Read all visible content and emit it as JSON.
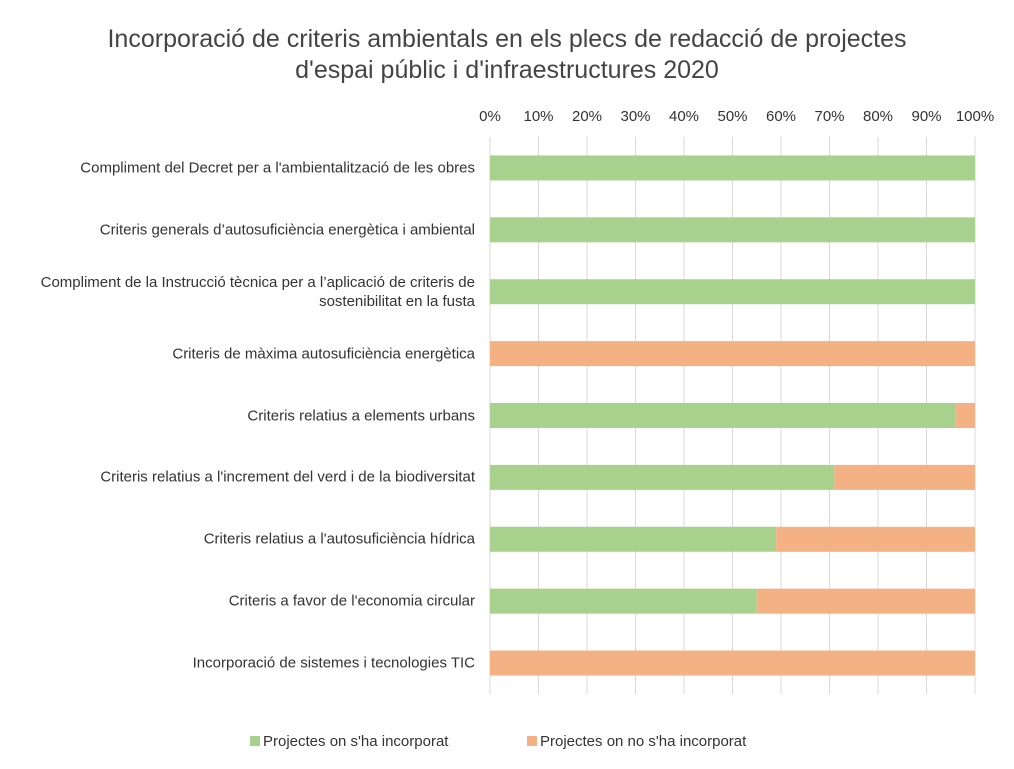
{
  "chart_data": {
    "type": "stacked-barh",
    "title": "Incorporació de criteris ambientals en els plecs de redacció de projectes d'espai públic i d'infraestructures 2020",
    "categories": [
      "Compliment del Decret per a l'ambientalització de les obres",
      "Criteris generals d’autosuficiència energètica i ambiental",
      "Compliment de la Instrucció tècnica per a l’aplicació de criteris de sostenibilitat en la fusta",
      "Criteris de màxima autosuficiència energètica",
      "Criteris relatius a elements urbans",
      "Criteris relatius a l'increment del verd i de la biodiversitat",
      "Criteris relatius a l'autosuficiència hídrica",
      "Criteris a favor de l'economia circular",
      "Incorporació de sistemes i tecnologies TIC"
    ],
    "series": [
      {
        "name": "Projectes on s'ha incorporat",
        "color": "#a9d18e",
        "values": [
          100,
          100,
          100,
          0,
          96,
          71,
          59,
          55,
          0
        ]
      },
      {
        "name": "Projectes on no s'ha incorporat",
        "color": "#f4b183",
        "values": [
          0,
          0,
          0,
          100,
          4,
          29,
          41,
          45,
          100
        ]
      }
    ],
    "xlim": [
      0,
      100
    ],
    "xticks": [
      {
        "value": 0,
        "label": "0%"
      },
      {
        "value": 10,
        "label": "10%"
      },
      {
        "value": 20,
        "label": "20%"
      },
      {
        "value": 30,
        "label": "30%"
      },
      {
        "value": 40,
        "label": "40%"
      },
      {
        "value": 50,
        "label": "50%"
      },
      {
        "value": 60,
        "label": "60%"
      },
      {
        "value": 70,
        "label": "70%"
      },
      {
        "value": 80,
        "label": "80%"
      },
      {
        "value": 90,
        "label": "90%"
      },
      {
        "value": 100,
        "label": "100%"
      }
    ],
    "grid": true,
    "legend": "bottom"
  }
}
